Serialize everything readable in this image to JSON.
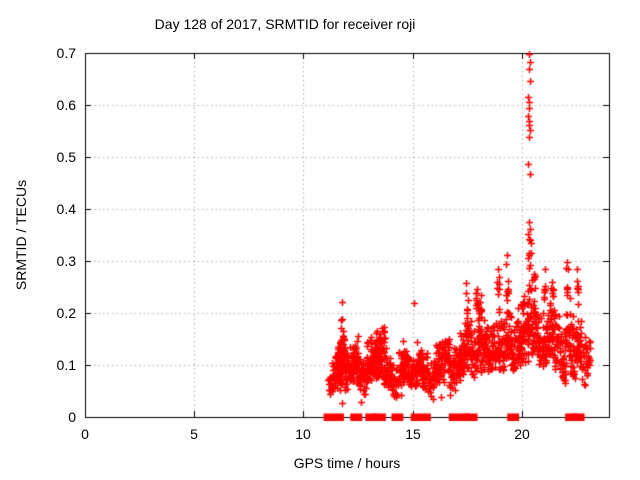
{
  "chart_data": {
    "type": "scatter",
    "title": "Day 128 of 2017, SRMTID for receiver roji",
    "xlabel": "GPS time / hours",
    "ylabel": "SRMTID / TECUs",
    "xlim": [
      0,
      24
    ],
    "ylim": [
      0,
      0.7
    ],
    "x_ticks": [
      0,
      5,
      10,
      15,
      20
    ],
    "x_tick_labels": [
      "0",
      "5",
      "10",
      "15",
      "20"
    ],
    "y_ticks": [
      0,
      0.1,
      0.2,
      0.3,
      0.4,
      0.5,
      0.6,
      0.7
    ],
    "y_tick_labels": [
      "0",
      "0.1",
      "0.2",
      "0.3",
      "0.4",
      "0.5",
      "0.6",
      "0.7"
    ],
    "grid": true,
    "legend": "none",
    "marker": "plus",
    "marker_color": "#ff0000",
    "grid_color": "#b0b0b0",
    "frame_color": "#000000",
    "zero_value_segments": [
      [
        11.09,
        11.7
      ],
      [
        12.31,
        12.54
      ],
      [
        13.0,
        13.21
      ],
      [
        13.36,
        13.62
      ],
      [
        14.2,
        14.42
      ],
      [
        15.08,
        15.68
      ],
      [
        16.82,
        17.43
      ],
      [
        17.55,
        17.82
      ],
      [
        19.5,
        19.72
      ],
      [
        22.15,
        22.42
      ],
      [
        22.46,
        22.72
      ]
    ],
    "clusters": [
      [
        11.15,
        11.35,
        0.04,
        0.095,
        16
      ],
      [
        11.3,
        11.52,
        0.05,
        0.12,
        22
      ],
      [
        11.5,
        11.72,
        0.05,
        0.155,
        40
      ],
      [
        11.68,
        11.9,
        0.06,
        0.195,
        36
      ],
      [
        11.88,
        12.1,
        0.05,
        0.135,
        28
      ],
      [
        12.08,
        12.3,
        0.055,
        0.145,
        28
      ],
      [
        12.28,
        12.52,
        0.065,
        0.16,
        34
      ],
      [
        12.5,
        12.72,
        0.05,
        0.13,
        24
      ],
      [
        12.7,
        12.92,
        0.04,
        0.115,
        20
      ],
      [
        12.9,
        13.12,
        0.06,
        0.16,
        30
      ],
      [
        13.1,
        13.32,
        0.065,
        0.175,
        34
      ],
      [
        13.3,
        13.52,
        0.06,
        0.17,
        32
      ],
      [
        13.5,
        13.72,
        0.065,
        0.19,
        30
      ],
      [
        13.7,
        13.92,
        0.05,
        0.145,
        26
      ],
      [
        13.9,
        14.12,
        0.045,
        0.12,
        20
      ],
      [
        14.1,
        14.36,
        0.04,
        0.11,
        16
      ],
      [
        14.34,
        14.6,
        0.055,
        0.15,
        28
      ],
      [
        14.58,
        14.82,
        0.065,
        0.16,
        30
      ],
      [
        14.8,
        15.02,
        0.05,
        0.125,
        22
      ],
      [
        15.0,
        15.22,
        0.055,
        0.13,
        24
      ],
      [
        15.2,
        15.46,
        0.065,
        0.16,
        34
      ],
      [
        15.44,
        15.7,
        0.05,
        0.135,
        26
      ],
      [
        15.68,
        15.96,
        0.04,
        0.12,
        20
      ],
      [
        15.94,
        16.2,
        0.055,
        0.14,
        28
      ],
      [
        16.18,
        16.46,
        0.065,
        0.155,
        34
      ],
      [
        16.44,
        16.7,
        0.075,
        0.17,
        34
      ],
      [
        16.68,
        16.96,
        0.05,
        0.14,
        24
      ],
      [
        16.94,
        17.2,
        0.065,
        0.16,
        28
      ],
      [
        17.18,
        17.46,
        0.075,
        0.19,
        34
      ],
      [
        17.44,
        17.7,
        0.08,
        0.21,
        34
      ],
      [
        17.68,
        17.94,
        0.075,
        0.18,
        30
      ],
      [
        17.92,
        18.2,
        0.085,
        0.22,
        34
      ],
      [
        18.18,
        18.46,
        0.08,
        0.2,
        30
      ],
      [
        18.44,
        18.7,
        0.07,
        0.18,
        28
      ],
      [
        18.68,
        18.96,
        0.08,
        0.2,
        30
      ],
      [
        18.94,
        19.2,
        0.085,
        0.22,
        30
      ],
      [
        19.18,
        19.46,
        0.095,
        0.24,
        30
      ],
      [
        19.44,
        19.7,
        0.08,
        0.2,
        28
      ],
      [
        19.68,
        19.96,
        0.09,
        0.22,
        30
      ],
      [
        19.94,
        20.2,
        0.1,
        0.25,
        34
      ],
      [
        20.18,
        20.5,
        0.1,
        0.28,
        40
      ],
      [
        20.48,
        20.75,
        0.1,
        0.24,
        30
      ],
      [
        20.73,
        21.0,
        0.08,
        0.2,
        26
      ],
      [
        20.98,
        21.25,
        0.1,
        0.25,
        30
      ],
      [
        21.23,
        21.5,
        0.1,
        0.26,
        34
      ],
      [
        21.48,
        21.75,
        0.08,
        0.22,
        30
      ],
      [
        21.73,
        22.0,
        0.06,
        0.18,
        28
      ],
      [
        21.98,
        22.25,
        0.08,
        0.24,
        30
      ],
      [
        22.23,
        22.5,
        0.06,
        0.2,
        30
      ],
      [
        22.48,
        22.75,
        0.08,
        0.22,
        30
      ],
      [
        22.73,
        23.0,
        0.06,
        0.17,
        24
      ],
      [
        22.98,
        23.15,
        0.09,
        0.15,
        10
      ],
      [
        11.55,
        11.63,
        0.09,
        0.155,
        8
      ],
      [
        11.72,
        11.82,
        0.07,
        0.21,
        12
      ],
      [
        13.48,
        13.56,
        0.08,
        0.19,
        10
      ],
      [
        17.46,
        17.54,
        0.18,
        0.26,
        7
      ],
      [
        17.9,
        17.98,
        0.2,
        0.27,
        9
      ],
      [
        18.06,
        18.16,
        0.19,
        0.265,
        9
      ],
      [
        18.86,
        18.98,
        0.2,
        0.285,
        8
      ],
      [
        19.28,
        19.4,
        0.22,
        0.3,
        7
      ],
      [
        20.28,
        20.42,
        0.28,
        0.345,
        6
      ],
      [
        20.55,
        20.65,
        0.24,
        0.3,
        5
      ],
      [
        21.0,
        21.1,
        0.22,
        0.283,
        5
      ],
      [
        21.35,
        21.45,
        0.2,
        0.27,
        6
      ],
      [
        22.02,
        22.15,
        0.22,
        0.295,
        6
      ],
      [
        22.52,
        22.62,
        0.2,
        0.275,
        6
      ]
    ],
    "outlier_points": [
      [
        20.33,
        0.698
      ],
      [
        20.36,
        0.682
      ],
      [
        20.33,
        0.67
      ],
      [
        20.37,
        0.647
      ],
      [
        20.31,
        0.615
      ],
      [
        20.34,
        0.606
      ],
      [
        20.33,
        0.594
      ],
      [
        20.3,
        0.578
      ],
      [
        20.35,
        0.57
      ],
      [
        20.32,
        0.561
      ],
      [
        20.36,
        0.552
      ],
      [
        20.33,
        0.539
      ],
      [
        20.3,
        0.487
      ],
      [
        20.36,
        0.468
      ],
      [
        20.32,
        0.375
      ],
      [
        20.38,
        0.362
      ],
      [
        20.3,
        0.352
      ],
      [
        20.4,
        0.34
      ],
      [
        20.44,
        0.335
      ],
      [
        20.35,
        0.312
      ],
      [
        19.33,
        0.312
      ],
      [
        19.3,
        0.295
      ],
      [
        18.92,
        0.285
      ],
      [
        21.05,
        0.285
      ],
      [
        22.08,
        0.298
      ],
      [
        22.12,
        0.285
      ],
      [
        22.55,
        0.285
      ],
      [
        11.79,
        0.222
      ],
      [
        15.05,
        0.219
      ],
      [
        11.78,
        0.027
      ],
      [
        12.62,
        0.029
      ],
      [
        14.25,
        0.038
      ],
      [
        14.47,
        0.043
      ],
      [
        15.85,
        0.041
      ],
      [
        15.96,
        0.034
      ],
      [
        16.32,
        0.039
      ],
      [
        16.7,
        0.042
      ]
    ]
  }
}
